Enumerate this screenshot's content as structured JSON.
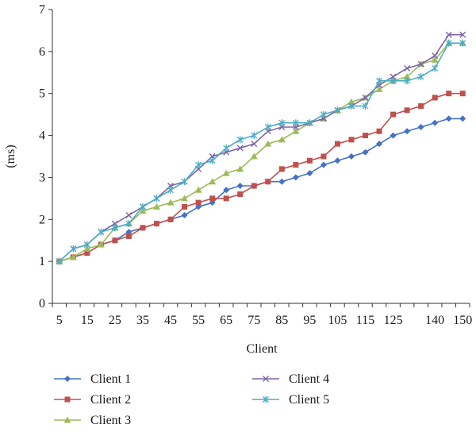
{
  "chart_data": {
    "type": "line",
    "title": "",
    "xlabel": "Client",
    "ylabel": "(ms)",
    "ylim": [
      0,
      7
    ],
    "yticks": [
      "0",
      "1",
      "2",
      "3",
      "4",
      "5",
      "6",
      "7"
    ],
    "grid": false,
    "legend_position": "bottom",
    "x": [
      5,
      10,
      15,
      20,
      25,
      30,
      35,
      40,
      45,
      50,
      55,
      60,
      65,
      70,
      75,
      80,
      85,
      90,
      95,
      100,
      105,
      110,
      115,
      120,
      125,
      130,
      135,
      140,
      145,
      150
    ],
    "xtick_labels": [
      "5",
      "15",
      "25",
      "35",
      "45",
      "55",
      "65",
      "75",
      "85",
      "95",
      "105",
      "115",
      "125",
      "140",
      "150"
    ],
    "xtick_positions": [
      5,
      15,
      25,
      35,
      45,
      55,
      65,
      75,
      85,
      95,
      105,
      115,
      125,
      140,
      150
    ],
    "series": [
      {
        "name": "Client 1",
        "color": "#4472C4",
        "marker": "diamond",
        "values": [
          1.0,
          1.1,
          1.2,
          1.4,
          1.5,
          1.7,
          1.8,
          1.9,
          2.0,
          2.1,
          2.3,
          2.4,
          2.7,
          2.8,
          2.8,
          2.9,
          2.9,
          3.0,
          3.1,
          3.3,
          3.4,
          3.5,
          3.6,
          3.8,
          4.0,
          4.1,
          4.2,
          4.3,
          4.4,
          4.4
        ]
      },
      {
        "name": "Client 2",
        "color": "#C0504D",
        "marker": "square",
        "values": [
          1.0,
          1.1,
          1.2,
          1.4,
          1.5,
          1.6,
          1.8,
          1.9,
          2.0,
          2.3,
          2.4,
          2.5,
          2.5,
          2.6,
          2.8,
          2.9,
          3.2,
          3.3,
          3.4,
          3.5,
          3.8,
          3.9,
          4.0,
          4.1,
          4.5,
          4.6,
          4.7,
          4.9,
          5.0,
          5.0
        ]
      },
      {
        "name": "Client 3",
        "color": "#9BBB59",
        "marker": "triangle",
        "values": [
          1.0,
          1.1,
          1.3,
          1.4,
          1.8,
          1.9,
          2.2,
          2.3,
          2.4,
          2.5,
          2.7,
          2.9,
          3.1,
          3.2,
          3.5,
          3.8,
          3.9,
          4.1,
          4.3,
          4.4,
          4.6,
          4.8,
          4.9,
          5.1,
          5.3,
          5.4,
          5.7,
          5.8,
          6.2,
          6.2
        ]
      },
      {
        "name": "Client 4",
        "color": "#8064A2",
        "marker": "x",
        "values": [
          1.0,
          1.3,
          1.4,
          1.7,
          1.9,
          2.1,
          2.3,
          2.5,
          2.8,
          2.9,
          3.2,
          3.5,
          3.6,
          3.7,
          3.8,
          4.1,
          4.2,
          4.2,
          4.3,
          4.4,
          4.6,
          4.7,
          4.9,
          5.2,
          5.4,
          5.6,
          5.7,
          5.9,
          6.4,
          6.4
        ]
      },
      {
        "name": "Client 5",
        "color": "#4BACC6",
        "marker": "star",
        "values": [
          1.0,
          1.3,
          1.4,
          1.7,
          1.8,
          1.9,
          2.3,
          2.5,
          2.7,
          2.9,
          3.3,
          3.4,
          3.7,
          3.9,
          4.0,
          4.2,
          4.3,
          4.3,
          4.3,
          4.5,
          4.6,
          4.7,
          4.7,
          5.3,
          5.3,
          5.3,
          5.4,
          5.6,
          6.2,
          6.2
        ]
      }
    ]
  }
}
